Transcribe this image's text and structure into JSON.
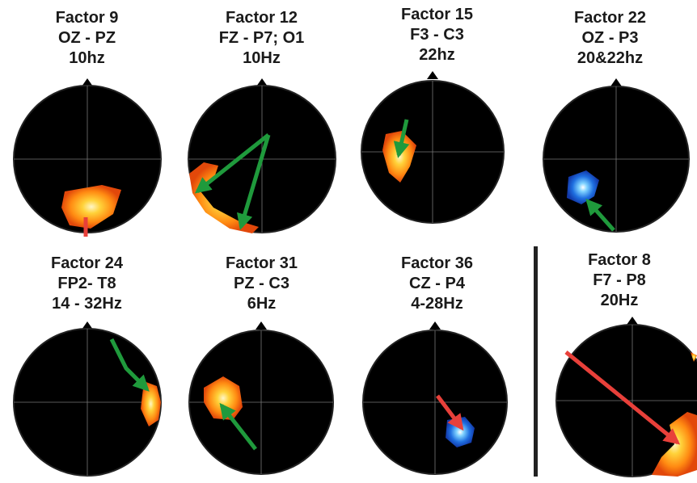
{
  "factors": [
    {
      "title": "Factor 9",
      "channels": "OZ - PZ",
      "frequency": "10hz",
      "arrow_color": "#e8403a",
      "blob_color": "warm"
    },
    {
      "title": "Factor 12",
      "channels": "FZ - P7; O1",
      "frequency": "10Hz",
      "arrow_color": "#1f9a3c",
      "blob_color": "warm"
    },
    {
      "title": "Factor 15",
      "channels": "F3 - C3",
      "frequency": "22hz",
      "arrow_color": "#1f9a3c",
      "blob_color": "warm"
    },
    {
      "title": "Factor 22",
      "channels": "OZ - P3",
      "frequency": "20&22hz",
      "arrow_color": "#1f9a3c",
      "blob_color": "cool"
    },
    {
      "title": "Factor 24",
      "channels": "FP2- T8",
      "frequency": "14 - 32Hz",
      "arrow_color": "#1f9a3c",
      "blob_color": "warm"
    },
    {
      "title": "Factor 31",
      "channels": "PZ - C3",
      "frequency": "6Hz",
      "arrow_color": "#1f9a3c",
      "blob_color": "warm"
    },
    {
      "title": "Factor 36",
      "channels": "CZ - P4",
      "frequency": "4-28Hz",
      "arrow_color": "#e8403a",
      "blob_color": "cool"
    },
    {
      "title": "Factor 8",
      "channels": "F7 - P8",
      "frequency": "20Hz",
      "arrow_color": "#e8403a",
      "blob_color": "warm"
    }
  ]
}
